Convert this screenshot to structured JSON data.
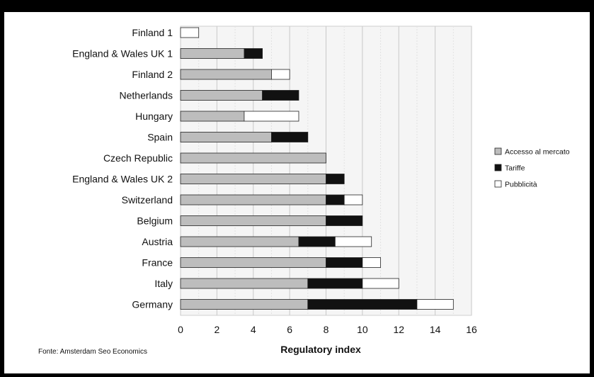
{
  "chart_data": {
    "type": "bar",
    "orientation": "horizontal",
    "stacked": true,
    "categories": [
      "Finland 1",
      "England & Wales UK 1",
      "Finland 2",
      "Netherlands",
      "Hungary",
      "Spain",
      "Czech Republic",
      "England & Wales UK 2",
      "Switzerland",
      "Belgium",
      "Austria",
      "France",
      "Italy",
      "Germany"
    ],
    "series": [
      {
        "name": "Accesso al mercato",
        "color": "#bdbdbd",
        "values": [
          0,
          3.5,
          5,
          4.5,
          3.5,
          5,
          8,
          8,
          8,
          8,
          6.5,
          8,
          7,
          7
        ]
      },
      {
        "name": "Tariffe",
        "color": "#111111",
        "values": [
          0,
          1,
          0,
          2,
          0,
          2,
          0,
          1,
          1,
          2,
          2,
          2,
          3,
          6
        ]
      },
      {
        "name": "Pubblicità",
        "color": "#ffffff",
        "values": [
          1,
          0,
          1,
          0,
          3,
          0,
          0,
          0,
          1,
          0,
          2,
          1,
          2,
          2
        ]
      }
    ],
    "xlabel": "Regulatory index",
    "xlim": [
      0,
      16
    ],
    "xticks": [
      "0",
      "2",
      "4",
      "6",
      "8",
      "10",
      "12",
      "14",
      "16"
    ],
    "grid": true,
    "legend_position": "right"
  },
  "source_note": "Fonte: Amsterdam Seo Economics"
}
